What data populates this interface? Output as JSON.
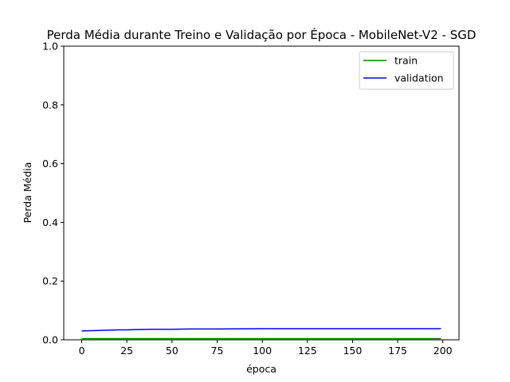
{
  "chart_data": {
    "type": "line",
    "title": "Perda Média durante Treino e Validação por Época - MobileNet-V2 - SGD",
    "xlabel": "época",
    "ylabel": "Perda Média",
    "xlim": [
      -9.95,
      208.95
    ],
    "ylim": [
      0,
      1.0
    ],
    "xticks": [
      0,
      25,
      50,
      75,
      100,
      125,
      150,
      175,
      200
    ],
    "yticks": [
      0.0,
      0.2,
      0.4,
      0.6,
      0.8,
      1.0
    ],
    "ytick_labels": [
      "0.0",
      "0.2",
      "0.4",
      "0.6",
      "0.8",
      "1.0"
    ],
    "grid": false,
    "legend_position": "upper right",
    "x": [
      0,
      5,
      10,
      15,
      20,
      25,
      30,
      40,
      50,
      60,
      75,
      100,
      125,
      150,
      175,
      199
    ],
    "series": [
      {
        "name": "train",
        "color": "#008000",
        "values": [
          0.004,
          0.004,
          0.004,
          0.004,
          0.004,
          0.004,
          0.004,
          0.004,
          0.004,
          0.004,
          0.004,
          0.004,
          0.004,
          0.004,
          0.004,
          0.004
        ]
      },
      {
        "name": "validation",
        "color": "#0000ff",
        "values": [
          0.03,
          0.031,
          0.032,
          0.033,
          0.034,
          0.034,
          0.035,
          0.036,
          0.036,
          0.037,
          0.037,
          0.038,
          0.038,
          0.038,
          0.038,
          0.038
        ]
      }
    ]
  }
}
